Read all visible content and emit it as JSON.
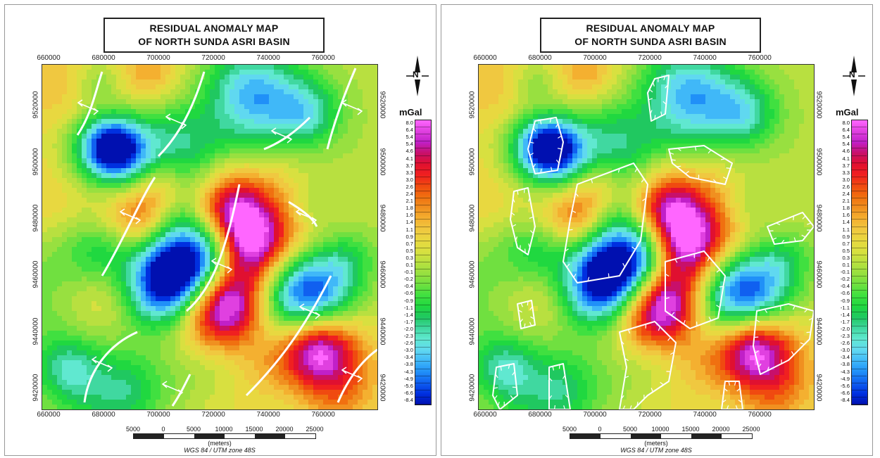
{
  "panels": [
    {
      "id": "left",
      "title_line1": "RESIDUAL ANOMALY MAP",
      "title_line2": "OF NORTH SUNDA ASRI BASIN",
      "overlay": "structural-lines",
      "seed": 7
    },
    {
      "id": "right",
      "title_line1": "RESIDUAL ANOMALY MAP",
      "title_line2": "OF NORTH SUNDA ASRI BASIN",
      "overlay": "low-closures",
      "seed": 7
    }
  ],
  "axes": {
    "x_ticks": [
      "660000",
      "680000",
      "700000",
      "720000",
      "740000",
      "760000"
    ],
    "y_ticks": [
      "9520000",
      "9500000",
      "9480000",
      "9460000",
      "9440000",
      "9420000"
    ]
  },
  "north_arrow": {
    "label": "N"
  },
  "legend": {
    "unit": "mGal",
    "levels": [
      "8.0",
      "6.4",
      "5.4",
      "5.4",
      "4.6",
      "4.1",
      "3.7",
      "3.3",
      "3.0",
      "2.6",
      "2.4",
      "2.1",
      "1.8",
      "1.6",
      "1.4",
      "1.1",
      "0.9",
      "0.7",
      "0.5",
      "0.3",
      "0.1",
      "-0.1",
      "-0.2",
      "-0.4",
      "-0.6",
      "-0.9",
      "-1.1",
      "-1.4",
      "-1.7",
      "-2.0",
      "-2.3",
      "-2.6",
      "-3.0",
      "-3.4",
      "-3.8",
      "-4.3",
      "-4.9",
      "-5.6",
      "-6.6",
      "-8.4"
    ],
    "colors": [
      "#ff66ff",
      "#e040e0",
      "#c020c8",
      "#c8106a",
      "#e01030",
      "#f02020",
      "#f04a10",
      "#f07010",
      "#f09020",
      "#f4b030",
      "#f0c840",
      "#e8d840",
      "#d8e040",
      "#b8e040",
      "#98e040",
      "#70e040",
      "#40e040",
      "#20d840",
      "#20c860",
      "#40d8a0",
      "#60e8d0",
      "#60d8f0",
      "#40b8f8",
      "#2090f8",
      "#1060f0",
      "#0030e0",
      "#0010b0"
    ]
  },
  "scale_bar": {
    "labels": [
      "5000",
      "0",
      "5000",
      "10000",
      "15000",
      "20000",
      "25000"
    ],
    "unit": "(meters)",
    "crs": "WGS 84 / UTM zone 48S"
  }
}
